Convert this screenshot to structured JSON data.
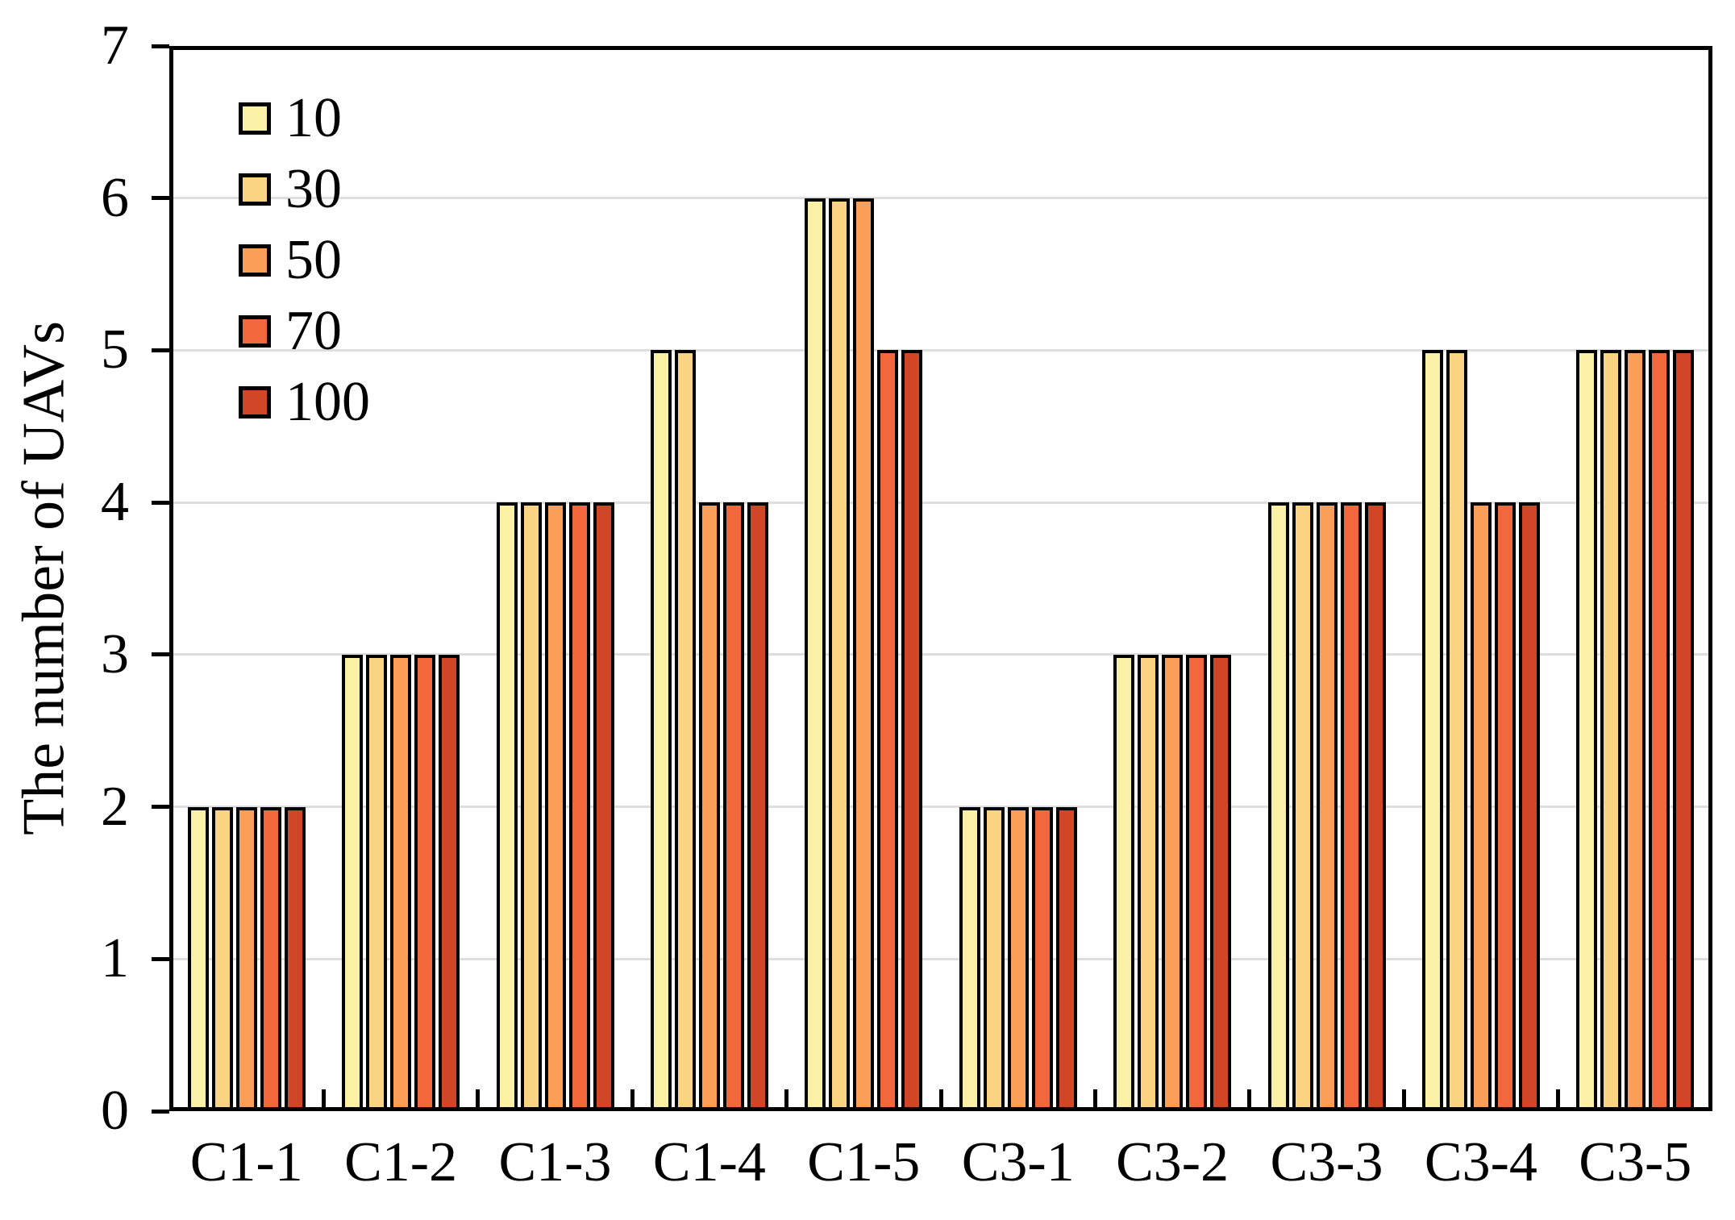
{
  "chart_data": {
    "type": "bar",
    "title": "",
    "xlabel": "",
    "ylabel": "The number of UAVs",
    "ylim": [
      0,
      7
    ],
    "yticks": [
      0,
      1,
      2,
      3,
      4,
      5,
      6,
      7
    ],
    "grid": true,
    "legend_position": "top-left-inside",
    "categories": [
      "C1-1",
      "C1-2",
      "C1-3",
      "C1-4",
      "C1-5",
      "C3-1",
      "C3-2",
      "C3-3",
      "C3-4",
      "C3-5"
    ],
    "series": [
      {
        "name": "10",
        "color": "#FAF1A6",
        "values": [
          2,
          3,
          4,
          5,
          6,
          2,
          3,
          4,
          5,
          5
        ]
      },
      {
        "name": "30",
        "color": "#FAD483",
        "values": [
          2,
          3,
          4,
          5,
          6,
          2,
          3,
          4,
          5,
          5
        ]
      },
      {
        "name": "50",
        "color": "#FB9E57",
        "values": [
          2,
          3,
          4,
          4,
          6,
          2,
          3,
          4,
          4,
          5
        ]
      },
      {
        "name": "70",
        "color": "#F3673C",
        "values": [
          2,
          3,
          4,
          4,
          5,
          2,
          3,
          4,
          4,
          5
        ]
      },
      {
        "name": "100",
        "color": "#D24628",
        "values": [
          2,
          3,
          4,
          4,
          5,
          2,
          3,
          4,
          4,
          5
        ]
      }
    ],
    "colors": {
      "axis": "#000000",
      "grid": "#DEDEDE",
      "bar_border": "#000000",
      "background": "#FFFFFF",
      "text": "#000000"
    }
  }
}
